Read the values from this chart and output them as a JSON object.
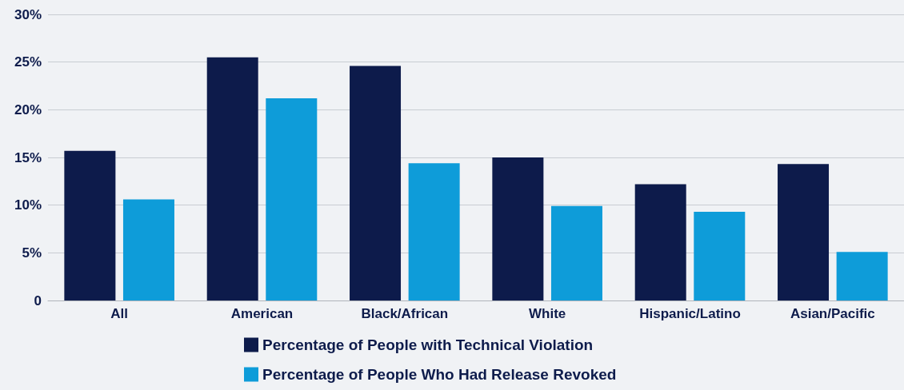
{
  "chart_data": {
    "type": "bar",
    "categories": [
      "All",
      "American",
      "Black/African",
      "White",
      "Hispanic/Latino",
      "Asian/Pacific"
    ],
    "series": [
      {
        "name": "Percentage of People with Technical Violation",
        "color": "#0d1b4b",
        "values": [
          15.7,
          25.5,
          24.6,
          15.0,
          12.2,
          14.3
        ]
      },
      {
        "name": "Percentage of People Who Had Release Revoked",
        "color": "#0e9cd9",
        "values": [
          10.6,
          21.2,
          14.4,
          9.9,
          9.3,
          5.1
        ]
      }
    ],
    "ylim": [
      0,
      30
    ],
    "yticks": [
      {
        "value": 0,
        "label": "0"
      },
      {
        "value": 5,
        "label": "5%"
      },
      {
        "value": 10,
        "label": "10%"
      },
      {
        "value": 15,
        "label": "15%"
      },
      {
        "value": 20,
        "label": "20%"
      },
      {
        "value": 25,
        "label": "25%"
      },
      {
        "value": 30,
        "label": "30%"
      }
    ],
    "grid": "y",
    "legend": "bottom"
  }
}
